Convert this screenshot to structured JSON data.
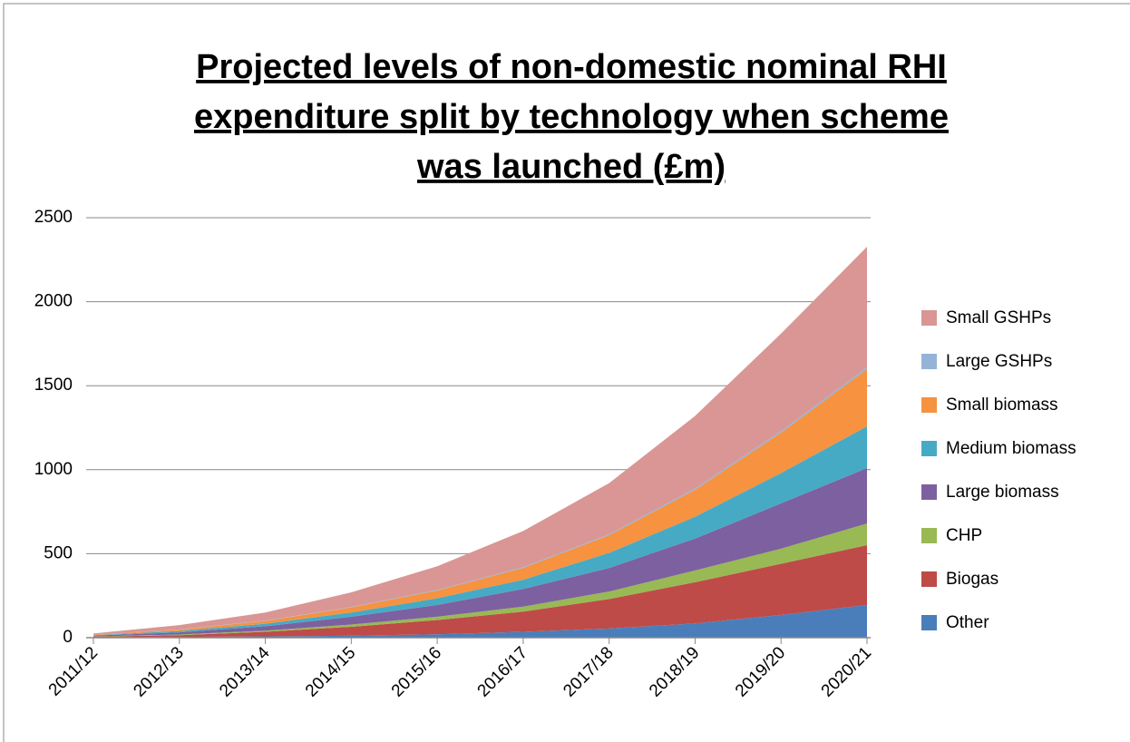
{
  "chart_data": {
    "type": "stacked-area",
    "title_lines": [
      "Projected levels of non-domestic nominal RHI",
      "expenditure split by technology when scheme",
      "was launched (£m)"
    ],
    "categories": [
      "2011/12",
      "2012/13",
      "2013/14",
      "2014/15",
      "2015/16",
      "2016/17",
      "2017/18",
      "2018/19",
      "2019/20",
      "2020/21"
    ],
    "series": [
      {
        "name": "Other",
        "color": "#4a7ebb",
        "values": [
          3,
          5,
          8,
          12,
          20,
          35,
          55,
          85,
          135,
          195
        ]
      },
      {
        "name": "Biogas",
        "color": "#be4b48",
        "values": [
          4,
          10,
          27,
          53,
          85,
          120,
          175,
          245,
          305,
          356
        ]
      },
      {
        "name": "CHP",
        "color": "#98b954",
        "values": [
          1,
          4,
          7,
          13,
          20,
          30,
          45,
          70,
          90,
          129
        ]
      },
      {
        "name": "Large biomass",
        "color": "#7d60a0",
        "values": [
          4,
          13,
          26,
          47,
          70,
          105,
          140,
          190,
          270,
          330
        ]
      },
      {
        "name": "Medium biomass",
        "color": "#46aac5",
        "values": [
          3,
          8,
          15,
          25,
          40,
          55,
          90,
          130,
          180,
          248
        ]
      },
      {
        "name": "Small biomass",
        "color": "#f69240",
        "values": [
          3,
          8,
          17,
          30,
          45,
          70,
          105,
          160,
          240,
          340
        ]
      },
      {
        "name": "Large GSHPs",
        "color": "#95b3d7",
        "values": [
          0,
          1,
          2,
          3,
          4,
          5,
          6,
          8,
          10,
          12
        ]
      },
      {
        "name": "Small GSHPs",
        "color": "#d99694",
        "values": [
          7,
          26,
          48,
          87,
          141,
          215,
          304,
          432,
          580,
          717
        ]
      }
    ],
    "ylim": [
      0,
      2500
    ],
    "yticks": [
      0,
      500,
      1000,
      1500,
      2000,
      2500
    ],
    "grid": true,
    "legend": "right"
  }
}
